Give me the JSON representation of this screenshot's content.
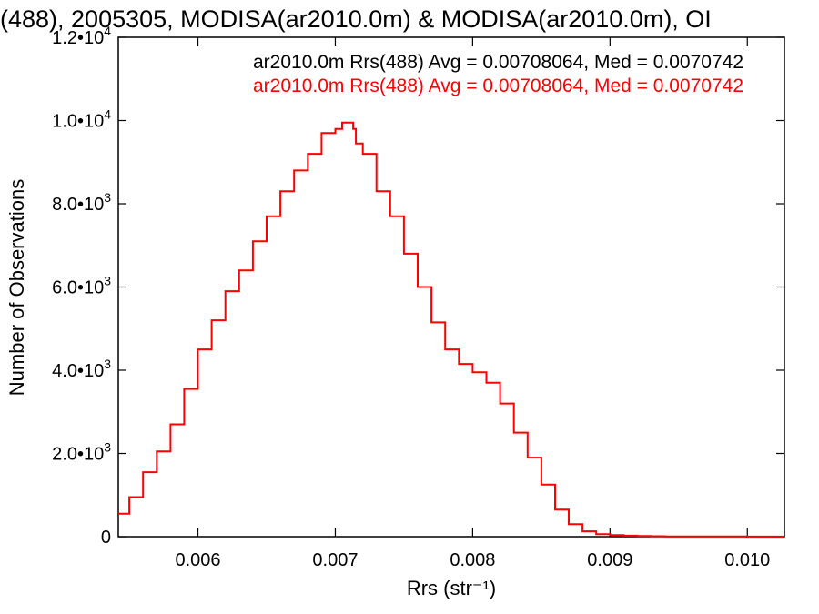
{
  "title": "(488), 2005305, MODISA(ar2010.0m) & MODISA(ar2010.0m), OI",
  "chart_data": {
    "type": "line",
    "step": true,
    "xlabel": "Rrs (str⁻¹)",
    "ylabel": "Number of Observations",
    "xlim": [
      0.00542,
      0.01027
    ],
    "ylim": [
      0,
      12000
    ],
    "x_ticks": [
      0.006,
      0.007,
      0.008,
      0.009,
      0.01
    ],
    "x_tick_labels": [
      "0.006",
      "0.007",
      "0.008",
      "0.009",
      "0.010"
    ],
    "y_ticks": [
      0,
      2000,
      4000,
      6000,
      8000,
      10000,
      12000
    ],
    "y_tick_labels": [
      {
        "mant": "0",
        "exp": ""
      },
      {
        "mant": "2.0•10",
        "exp": "3"
      },
      {
        "mant": "4.0•10",
        "exp": "3"
      },
      {
        "mant": "6.0•10",
        "exp": "3"
      },
      {
        "mant": "8.0•10",
        "exp": "3"
      },
      {
        "mant": "1.0•10",
        "exp": "4"
      },
      {
        "mant": "1.2•10",
        "exp": "4"
      }
    ],
    "grid": false,
    "legend_position": "top-right",
    "annotations": [
      {
        "text": "ar2010.0m Rrs(488) Avg = 0.00708064, Med = 0.0070742",
        "color": "#000000"
      },
      {
        "text": "ar2010.0m Rrs(488) Avg = 0.00708064, Med = 0.0070742",
        "color": "#ff0000"
      }
    ],
    "series": [
      {
        "color": "#ff0000",
        "x": [
          0.00542,
          0.0055,
          0.0056,
          0.0057,
          0.0058,
          0.0059,
          0.006,
          0.0061,
          0.0062,
          0.0063,
          0.0064,
          0.0065,
          0.0066,
          0.0067,
          0.0068,
          0.0069,
          0.007,
          0.00705,
          0.0071,
          0.00713,
          0.00715,
          0.0072,
          0.0073,
          0.0074,
          0.0075,
          0.0076,
          0.0077,
          0.0078,
          0.0079,
          0.008,
          0.0081,
          0.0082,
          0.0083,
          0.0084,
          0.0085,
          0.0086,
          0.0087,
          0.0088,
          0.0089,
          0.009,
          0.0091,
          0.0092,
          0.0093,
          0.0094,
          0.0096,
          0.0098,
          0.01,
          0.01027
        ],
        "y": [
          550,
          950,
          1550,
          2050,
          2700,
          3550,
          4500,
          5200,
          5900,
          6400,
          7100,
          7700,
          8300,
          8800,
          9200,
          9700,
          9800,
          9950,
          9950,
          9800,
          9450,
          9200,
          8300,
          7700,
          6800,
          6000,
          5150,
          4500,
          4150,
          3950,
          3700,
          3200,
          2500,
          1900,
          1250,
          650,
          300,
          130,
          60,
          40,
          25,
          15,
          10,
          6,
          5,
          4,
          3,
          2
        ]
      }
    ]
  }
}
